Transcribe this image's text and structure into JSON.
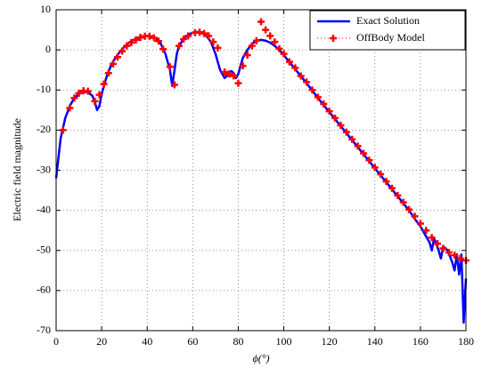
{
  "chart_data": {
    "type": "line",
    "xlabel": "ϕ(°)",
    "ylabel": "Electric field magnitude",
    "xlim": [
      0,
      180
    ],
    "xticks": [
      0,
      20,
      40,
      60,
      80,
      100,
      120,
      140,
      160,
      180
    ],
    "ylim": [
      -70,
      10
    ],
    "yticks": [
      -70,
      -60,
      -50,
      -40,
      -30,
      -20,
      -10,
      0,
      10
    ],
    "grid": true,
    "legend": "upper right",
    "series": [
      {
        "name": "Exact Solution",
        "color": "#0000ff",
        "line_style": "solid",
        "marker": "none",
        "x": [
          0,
          2,
          4,
          6,
          8,
          10,
          12,
          14,
          16,
          17,
          18,
          19,
          20,
          22,
          24,
          26,
          28,
          30,
          32,
          34,
          36,
          38,
          40,
          42,
          44,
          46,
          48,
          50,
          51,
          52,
          53,
          54,
          56,
          58,
          60,
          62,
          64,
          66,
          68,
          70,
          72,
          74,
          75,
          76,
          77,
          78,
          79,
          80,
          82,
          84,
          86,
          88,
          90,
          92,
          94,
          96,
          98,
          100,
          105,
          110,
          115,
          120,
          125,
          130,
          135,
          140,
          145,
          150,
          155,
          158,
          160,
          162,
          164,
          165,
          166,
          168,
          169,
          170,
          172,
          174,
          175,
          176,
          177,
          178,
          179,
          180
        ],
        "values": [
          -32,
          -22,
          -17,
          -14,
          -12,
          -11,
          -10.5,
          -10.5,
          -11.5,
          -13,
          -15,
          -14,
          -11,
          -7,
          -4,
          -2,
          -0.5,
          0.8,
          1.8,
          2.5,
          3,
          3.4,
          3.5,
          3.3,
          2.8,
          1.5,
          -1,
          -5,
          -9,
          -5,
          -1,
          1,
          2.8,
          3.8,
          4.3,
          4.5,
          4.3,
          3.5,
          2,
          -1,
          -5,
          -7,
          -6.5,
          -5.5,
          -5.3,
          -5.8,
          -7,
          -6,
          -2,
          0,
          1.5,
          2.3,
          2.5,
          2.3,
          1.8,
          1,
          0,
          -1.3,
          -4.8,
          -8.3,
          -12,
          -15.5,
          -19,
          -22.5,
          -26,
          -29.5,
          -33,
          -36.5,
          -40,
          -42.5,
          -44,
          -46,
          -48,
          -50,
          -47,
          -50,
          -52,
          -49,
          -50,
          -53,
          -55,
          -51,
          -56,
          -51,
          -68,
          -57
        ]
      },
      {
        "name": "OffBody Model",
        "color": "#ff0000",
        "line_style": "none",
        "marker": "+",
        "x": [
          3,
          6,
          8,
          10,
          12,
          14,
          17,
          19,
          21,
          23,
          25,
          27,
          29,
          31,
          33,
          35,
          37,
          39,
          41,
          43,
          45,
          47,
          50,
          52,
          54,
          56,
          58,
          61,
          63,
          65,
          67,
          69,
          71,
          74,
          76,
          78,
          80,
          82,
          84,
          86,
          88,
          90,
          92,
          94,
          96,
          98,
          100,
          102.5,
          105,
          107.5,
          110,
          112.5,
          115,
          117.5,
          120,
          122.5,
          125,
          127.5,
          130,
          132.5,
          135,
          137.5,
          140,
          142.5,
          145,
          147.5,
          150,
          152.5,
          155,
          157.5,
          160,
          162.5,
          165,
          167.5,
          170,
          172.5,
          175,
          177.5,
          180
        ],
        "values": [
          -20,
          -14.5,
          -12,
          -10.8,
          -10.2,
          -10.3,
          -12.8,
          -11.2,
          -8.5,
          -5.8,
          -3.5,
          -1.8,
          -0.3,
          1,
          1.8,
          2.5,
          3.1,
          3.4,
          3.4,
          3,
          2.2,
          0.2,
          -4.2,
          -8.7,
          1,
          2.7,
          3.5,
          4.3,
          4.4,
          4.1,
          3.5,
          2,
          0.5,
          -5.5,
          -6,
          -6.5,
          -8.3,
          -4,
          -1.3,
          1,
          2.3,
          7,
          5,
          3.5,
          2,
          0.3,
          -1,
          -3,
          -4.5,
          -6.5,
          -8,
          -10,
          -11.8,
          -13.5,
          -15.3,
          -17,
          -18.8,
          -20.5,
          -22.3,
          -24,
          -25.8,
          -27.5,
          -29.3,
          -31,
          -32.8,
          -34.5,
          -36.3,
          -38,
          -39.8,
          -41.5,
          -43.3,
          -45,
          -46.8,
          -48.3,
          -49.5,
          -50.5,
          -51.2,
          -52,
          -52.5
        ]
      }
    ]
  }
}
